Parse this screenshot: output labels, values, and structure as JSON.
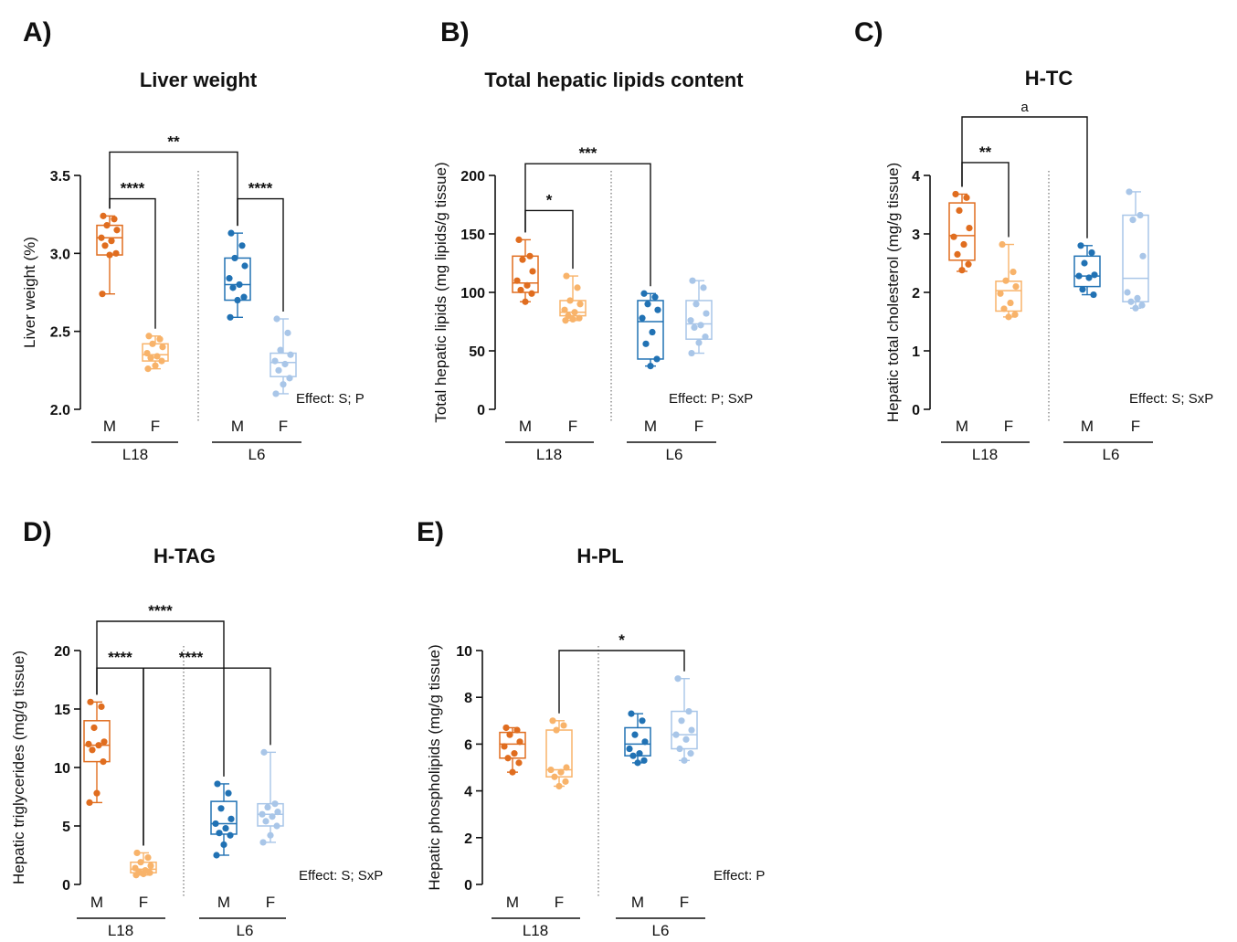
{
  "colors": {
    "L18_M": "#e06d1f",
    "L18_F": "#f8b36a",
    "L6_M": "#2172b4",
    "L6_F": "#a9c6e8"
  },
  "groups": [
    "L18",
    "L6"
  ],
  "sexes": [
    "M",
    "F"
  ],
  "chart_data": [
    {
      "type": "box",
      "panel_label": "A)",
      "title": "Liver weight",
      "xlabel": "",
      "ylabel": "Liver weight (%)",
      "ylim": [
        2.0,
        3.5
      ],
      "yticks": [
        "2.0",
        "2.5",
        "3.0",
        "3.5"
      ],
      "categories": [
        "M",
        "F",
        "M",
        "F"
      ],
      "groups": [
        "L18",
        "L6"
      ],
      "effect": "Effect: S; P",
      "series": [
        {
          "group": "L18",
          "sex": "M",
          "min": 2.74,
          "q1": 2.99,
          "median": 3.1,
          "q3": 3.18,
          "max": 3.24,
          "points": [
            3.24,
            3.22,
            3.18,
            3.15,
            3.1,
            3.08,
            3.05,
            3.0,
            2.99,
            2.74
          ]
        },
        {
          "group": "L18",
          "sex": "F",
          "min": 2.26,
          "q1": 2.31,
          "median": 2.35,
          "q3": 2.42,
          "max": 2.47,
          "points": [
            2.47,
            2.45,
            2.42,
            2.4,
            2.36,
            2.34,
            2.33,
            2.31,
            2.28,
            2.26
          ]
        },
        {
          "group": "L6",
          "sex": "M",
          "min": 2.59,
          "q1": 2.7,
          "median": 2.8,
          "q3": 2.97,
          "max": 3.13,
          "points": [
            3.13,
            3.05,
            2.97,
            2.92,
            2.84,
            2.8,
            2.78,
            2.72,
            2.7,
            2.59
          ]
        },
        {
          "group": "L6",
          "sex": "F",
          "min": 2.1,
          "q1": 2.21,
          "median": 2.3,
          "q3": 2.36,
          "max": 2.58,
          "points": [
            2.58,
            2.49,
            2.38,
            2.35,
            2.31,
            2.29,
            2.25,
            2.2,
            2.16,
            2.1
          ]
        }
      ],
      "comparisons": [
        {
          "from": 0,
          "to": 1,
          "label": "****",
          "y": 3.35
        },
        {
          "from": 2,
          "to": 3,
          "label": "****",
          "y": 3.35
        },
        {
          "from": 0,
          "to": 2,
          "label": "**",
          "y": 3.65
        }
      ]
    },
    {
      "type": "box",
      "panel_label": "B)",
      "title": "Total hepatic lipids content",
      "xlabel": "",
      "ylabel": "Total hepatic lipids (mg lipids/g tissue)",
      "ylim": [
        0,
        200
      ],
      "yticks": [
        "0",
        "50",
        "100",
        "150",
        "200"
      ],
      "categories": [
        "M",
        "F",
        "M",
        "F"
      ],
      "groups": [
        "L18",
        "L6"
      ],
      "effect": "Effect: P; SxP",
      "series": [
        {
          "group": "L18",
          "sex": "M",
          "min": 92,
          "q1": 100,
          "median": 108,
          "q3": 131,
          "max": 145,
          "points": [
            145,
            131,
            128,
            118,
            110,
            106,
            102,
            99,
            92
          ]
        },
        {
          "group": "L18",
          "sex": "F",
          "min": 76,
          "q1": 80,
          "median": 83,
          "q3": 93,
          "max": 114,
          "points": [
            114,
            104,
            93,
            90,
            85,
            83,
            80,
            78,
            77,
            76
          ]
        },
        {
          "group": "L6",
          "sex": "M",
          "min": 37,
          "q1": 43,
          "median": 75,
          "q3": 93,
          "max": 99,
          "points": [
            99,
            96,
            90,
            85,
            78,
            66,
            56,
            43,
            37
          ]
        },
        {
          "group": "L6",
          "sex": "F",
          "min": 48,
          "q1": 60,
          "median": 73,
          "q3": 93,
          "max": 110,
          "points": [
            110,
            104,
            90,
            82,
            76,
            72,
            70,
            62,
            57,
            48
          ]
        }
      ],
      "comparisons": [
        {
          "from": 0,
          "to": 1,
          "label": "*",
          "y": 170
        },
        {
          "from": 0,
          "to": 2,
          "label": "***",
          "y": 210
        }
      ]
    },
    {
      "type": "box",
      "panel_label": "C)",
      "title": "H-TC",
      "xlabel": "",
      "ylabel": "Hepatic total cholesterol (mg/g tissue)",
      "ylim": [
        0,
        4
      ],
      "yticks": [
        "0",
        "1",
        "2",
        "3",
        "4"
      ],
      "categories": [
        "M",
        "F",
        "M",
        "F"
      ],
      "groups": [
        "L18",
        "L6"
      ],
      "effect": "Effect: S; SxP",
      "series": [
        {
          "group": "L18",
          "sex": "M",
          "min": 2.36,
          "q1": 2.55,
          "median": 2.97,
          "q3": 3.53,
          "max": 3.68,
          "points": [
            3.68,
            3.62,
            3.4,
            3.1,
            2.95,
            2.82,
            2.65,
            2.48,
            2.38
          ]
        },
        {
          "group": "L18",
          "sex": "F",
          "min": 1.58,
          "q1": 1.68,
          "median": 2.03,
          "q3": 2.19,
          "max": 2.82,
          "points": [
            2.82,
            2.35,
            2.2,
            2.1,
            1.98,
            1.82,
            1.72,
            1.62,
            1.58
          ]
        },
        {
          "group": "L6",
          "sex": "M",
          "min": 1.96,
          "q1": 2.1,
          "median": 2.28,
          "q3": 2.62,
          "max": 2.8,
          "points": [
            2.8,
            2.68,
            2.5,
            2.3,
            2.28,
            2.25,
            2.05,
            1.96
          ]
        },
        {
          "group": "L6",
          "sex": "F",
          "min": 1.73,
          "q1": 1.84,
          "median": 2.24,
          "q3": 3.32,
          "max": 3.72,
          "points": [
            3.72,
            3.32,
            3.24,
            2.62,
            2.0,
            1.9,
            1.84,
            1.78,
            1.73
          ]
        }
      ],
      "comparisons": [
        {
          "from": 0,
          "to": 1,
          "label": "**",
          "y": 4.22
        },
        {
          "from": 0,
          "to": 2,
          "label": "a",
          "y": 5.0
        }
      ]
    },
    {
      "type": "box",
      "panel_label": "D)",
      "title": "H-TAG",
      "xlabel": "",
      "ylabel": "Hepatic triglycerides (mg/g tissue)",
      "ylim": [
        0,
        20
      ],
      "yticks": [
        "0",
        "5",
        "10",
        "15",
        "20"
      ],
      "categories": [
        "M",
        "F",
        "M",
        "F"
      ],
      "groups": [
        "L18",
        "L6"
      ],
      "effect": "Effect: S; SxP",
      "series": [
        {
          "group": "L18",
          "sex": "M",
          "min": 7.0,
          "q1": 10.5,
          "median": 11.9,
          "q3": 14.0,
          "max": 15.6,
          "points": [
            15.6,
            15.2,
            13.4,
            12.2,
            12.0,
            11.9,
            11.5,
            10.5,
            7.8,
            7.0
          ]
        },
        {
          "group": "L18",
          "sex": "F",
          "min": 0.8,
          "q1": 1.0,
          "median": 1.3,
          "q3": 1.9,
          "max": 2.7,
          "points": [
            2.7,
            2.3,
            1.9,
            1.6,
            1.4,
            1.2,
            1.1,
            1.0,
            0.9,
            0.8
          ]
        },
        {
          "group": "L6",
          "sex": "M",
          "min": 2.5,
          "q1": 4.3,
          "median": 5.2,
          "q3": 7.1,
          "max": 8.6,
          "points": [
            8.6,
            7.8,
            6.5,
            5.6,
            5.2,
            4.8,
            4.4,
            4.2,
            3.4,
            2.5
          ]
        },
        {
          "group": "L6",
          "sex": "F",
          "min": 3.6,
          "q1": 5.0,
          "median": 6.0,
          "q3": 6.9,
          "max": 11.3,
          "points": [
            11.3,
            6.9,
            6.6,
            6.2,
            6.0,
            5.8,
            5.4,
            5.0,
            4.2,
            3.6
          ]
        }
      ],
      "comparisons": [
        {
          "from": 0,
          "to": 1,
          "label": "****",
          "y": 18.5
        },
        {
          "from": 1,
          "to": 3,
          "label": "****",
          "y": 18.5,
          "star_at": 2
        },
        {
          "from": 0,
          "to": 2,
          "label": "****",
          "y": 22.5
        }
      ]
    },
    {
      "type": "box",
      "panel_label": "E)",
      "title": "H-PL",
      "xlabel": "",
      "ylabel": "Hepatic phospholipids (mg/g tissue)",
      "ylim": [
        0,
        10
      ],
      "yticks": [
        "0",
        "2",
        "4",
        "6",
        "8",
        "10"
      ],
      "categories": [
        "M",
        "F",
        "M",
        "F"
      ],
      "groups": [
        "L18",
        "L6"
      ],
      "effect": "Effect: P",
      "series": [
        {
          "group": "L18",
          "sex": "M",
          "min": 4.8,
          "q1": 5.4,
          "median": 6.0,
          "q3": 6.5,
          "max": 6.7,
          "points": [
            6.7,
            6.6,
            6.4,
            6.1,
            5.9,
            5.6,
            5.4,
            5.2,
            4.8
          ]
        },
        {
          "group": "L18",
          "sex": "F",
          "min": 4.2,
          "q1": 4.6,
          "median": 4.9,
          "q3": 6.6,
          "max": 7.0,
          "points": [
            7.0,
            6.8,
            6.6,
            5.0,
            4.9,
            4.8,
            4.6,
            4.4,
            4.2
          ]
        },
        {
          "group": "L6",
          "sex": "M",
          "min": 5.2,
          "q1": 5.5,
          "median": 6.0,
          "q3": 6.7,
          "max": 7.3,
          "points": [
            7.3,
            7.0,
            6.4,
            6.1,
            5.8,
            5.6,
            5.5,
            5.3,
            5.2
          ]
        },
        {
          "group": "L6",
          "sex": "F",
          "min": 5.3,
          "q1": 5.8,
          "median": 6.4,
          "q3": 7.4,
          "max": 8.8,
          "points": [
            8.8,
            7.4,
            7.0,
            6.6,
            6.4,
            6.2,
            5.8,
            5.6,
            5.3
          ]
        }
      ],
      "comparisons": [
        {
          "from": 1,
          "to": 3,
          "label": "*",
          "y": 10.0
        }
      ]
    }
  ]
}
